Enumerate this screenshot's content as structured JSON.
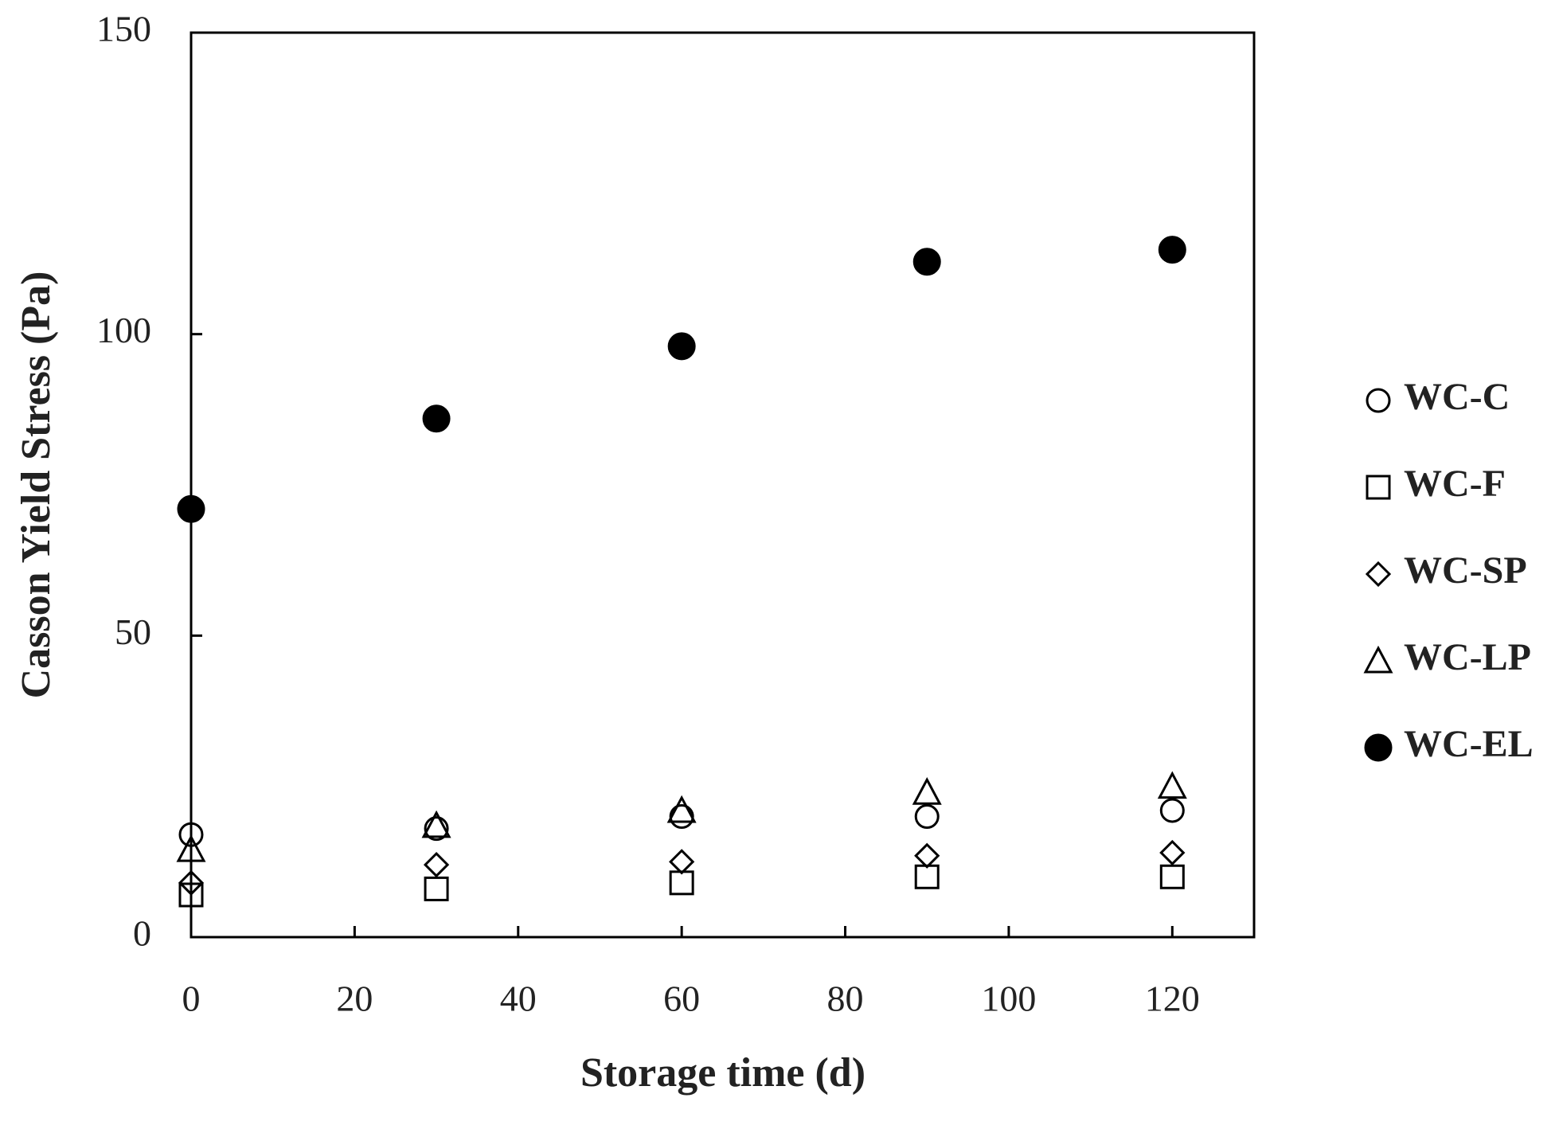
{
  "chart_data": {
    "type": "scatter",
    "x_label": "Storage time (d)",
    "y_label": "Casson Yield Stress (Pa)",
    "xlim": [
      0,
      130
    ],
    "xticks": [
      0,
      20,
      40,
      60,
      80,
      100,
      120
    ],
    "ylim": [
      0,
      150
    ],
    "yticks": [
      0,
      50,
      100,
      150
    ],
    "x": [
      0,
      30,
      60,
      90,
      120
    ],
    "series": [
      {
        "name": "WC-C",
        "color": "#000000",
        "marker": "circle",
        "filled": false,
        "values": [
          17,
          18,
          20,
          20,
          21
        ]
      },
      {
        "name": "WC-F",
        "color": "#000000",
        "marker": "square",
        "filled": false,
        "values": [
          7,
          8,
          9,
          10,
          10
        ]
      },
      {
        "name": "WC-SP",
        "color": "#000000",
        "marker": "diamond",
        "filled": false,
        "values": [
          9,
          12,
          12.5,
          13.5,
          14
        ]
      },
      {
        "name": "WC-LP",
        "color": "#000000",
        "marker": "triangle",
        "filled": false,
        "values": [
          14.5,
          18.5,
          21,
          24,
          25
        ]
      },
      {
        "name": "WC-EL",
        "color": "#000000",
        "marker": "circle",
        "filled": true,
        "values": [
          71,
          86,
          98,
          112,
          114
        ]
      }
    ],
    "legend": "right"
  }
}
